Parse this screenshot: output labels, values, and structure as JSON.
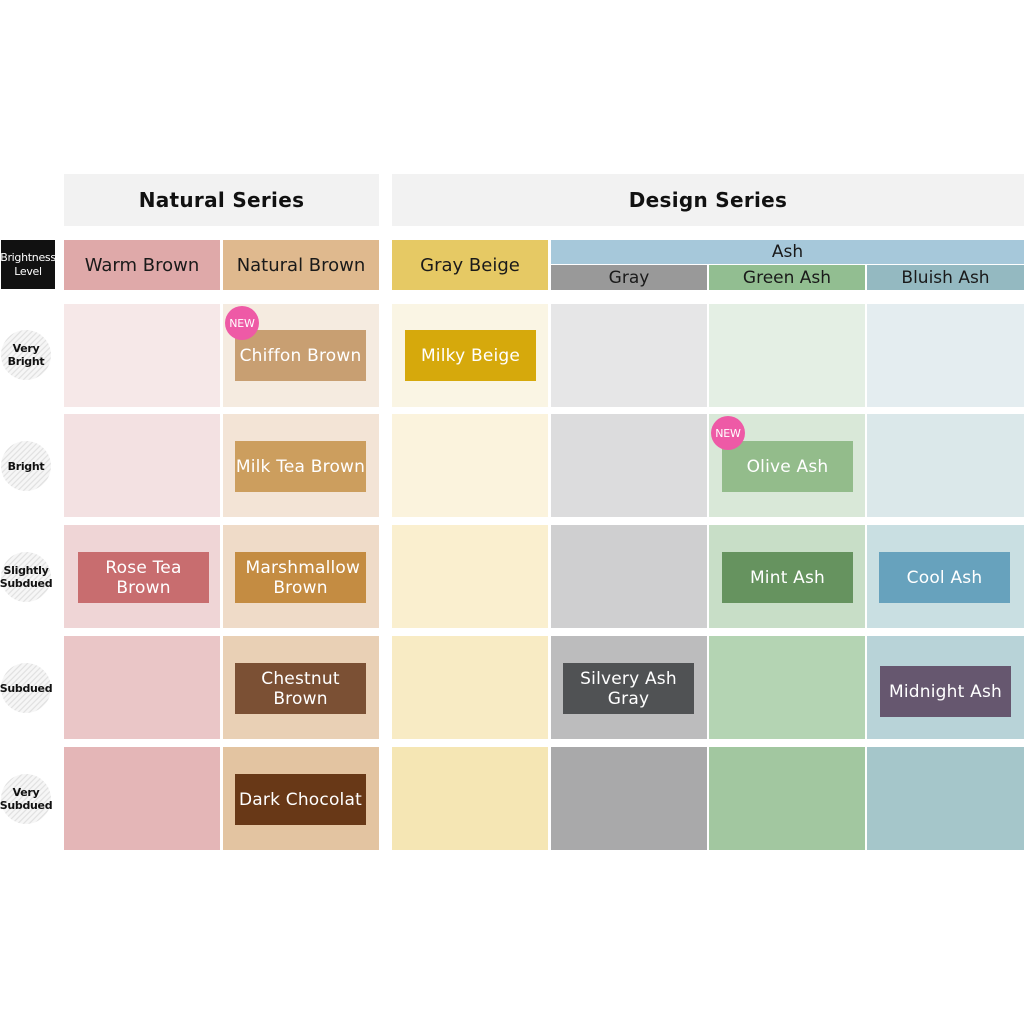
{
  "header": {
    "natural_series": "Natural Series",
    "design_series": "Design Series",
    "brightness_level": "Brightness Level"
  },
  "columns": {
    "warm_brown": "Warm Brown",
    "natural_brown": "Natural Brown",
    "gray_beige": "Gray Beige",
    "ash": "Ash",
    "gray": "Gray",
    "green_ash": "Green Ash",
    "bluish_ash": "Bluish Ash"
  },
  "rows": {
    "very_bright": "Very Bright",
    "bright": "Bright",
    "slightly_subdued": "Slightly Subdued",
    "subdued": "Subdued",
    "very_subdued": "Very Subdued"
  },
  "swatches": {
    "chiffon_brown": "Chiffon Brown",
    "milky_beige": "Milky Beige",
    "milk_tea_brown": "Milk Tea Brown",
    "olive_ash": "Olive Ash",
    "rose_tea_brown": "Rose Tea Brown",
    "marshmallow_brown": "Marshmallow Brown",
    "mint_ash": "Mint Ash",
    "cool_ash": "Cool Ash",
    "chestnut_brown": "Chestnut Brown",
    "silvery_ash_gray": "Silvery Ash Gray",
    "midnight_ash": "Midnight Ash",
    "dark_chocolat": "Dark Chocolat"
  },
  "badge": {
    "new": "NEW"
  },
  "colors": {
    "warm_brown_header": "#dfa9a9",
    "natural_brown_header": "#dfb98e",
    "gray_beige_header": "#e6c964",
    "ash_header": "#a6c8da",
    "gray_header": "#999999",
    "green_ash_header": "#92be91",
    "bluish_ash_header": "#94b9c1",
    "new_badge": "#ee5aa6"
  }
}
